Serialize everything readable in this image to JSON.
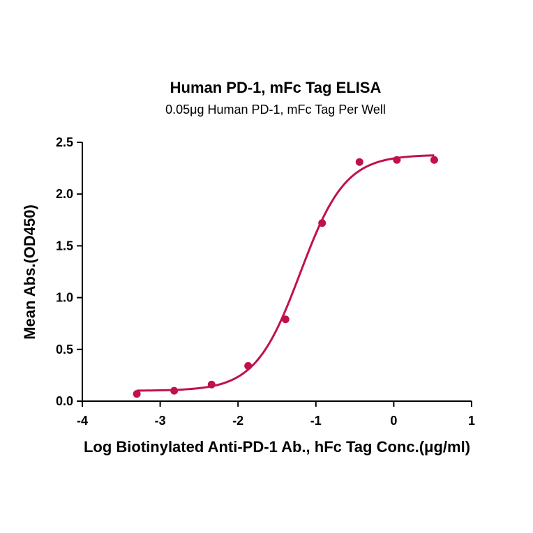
{
  "chart_data": {
    "type": "scatter",
    "title": "Human PD-1, mFc Tag ELISA",
    "subtitle": "0.05μg Human PD-1, mFc Tag Per Well",
    "xlabel": "Log Biotinylated Anti-PD-1 Ab., hFc Tag Conc.(μg/ml)",
    "ylabel": "Mean Abs.(OD450)",
    "xlim": [
      -4,
      1
    ],
    "ylim": [
      0,
      2.5
    ],
    "x_ticks": [
      -4,
      -3,
      -2,
      -1,
      0,
      1
    ],
    "y_ticks": [
      0.0,
      0.5,
      1.0,
      1.5,
      2.0,
      2.5
    ],
    "x_tick_labels": [
      "-4",
      "-3",
      "-2",
      "-1",
      "0",
      "1"
    ],
    "y_tick_labels": [
      "0.0",
      "0.5",
      "1.0",
      "1.5",
      "2.0",
      "2.5"
    ],
    "grid": false,
    "color": "#c0124a",
    "series": [
      {
        "points": [
          {
            "x": -3.3,
            "y": 0.07
          },
          {
            "x": -2.82,
            "y": 0.1
          },
          {
            "x": -2.34,
            "y": 0.16
          },
          {
            "x": -1.87,
            "y": 0.34
          },
          {
            "x": -1.39,
            "y": 0.79
          },
          {
            "x": -0.92,
            "y": 1.72
          },
          {
            "x": -0.44,
            "y": 2.31
          },
          {
            "x": 0.04,
            "y": 2.33
          },
          {
            "x": 0.52,
            "y": 2.33
          }
        ],
        "fit": {
          "model": "4PL",
          "bottom": 0.1,
          "top": 2.38,
          "logEC50": -1.2,
          "hill": 1.5,
          "xrange": [
            -3.3,
            0.52
          ]
        }
      }
    ]
  }
}
